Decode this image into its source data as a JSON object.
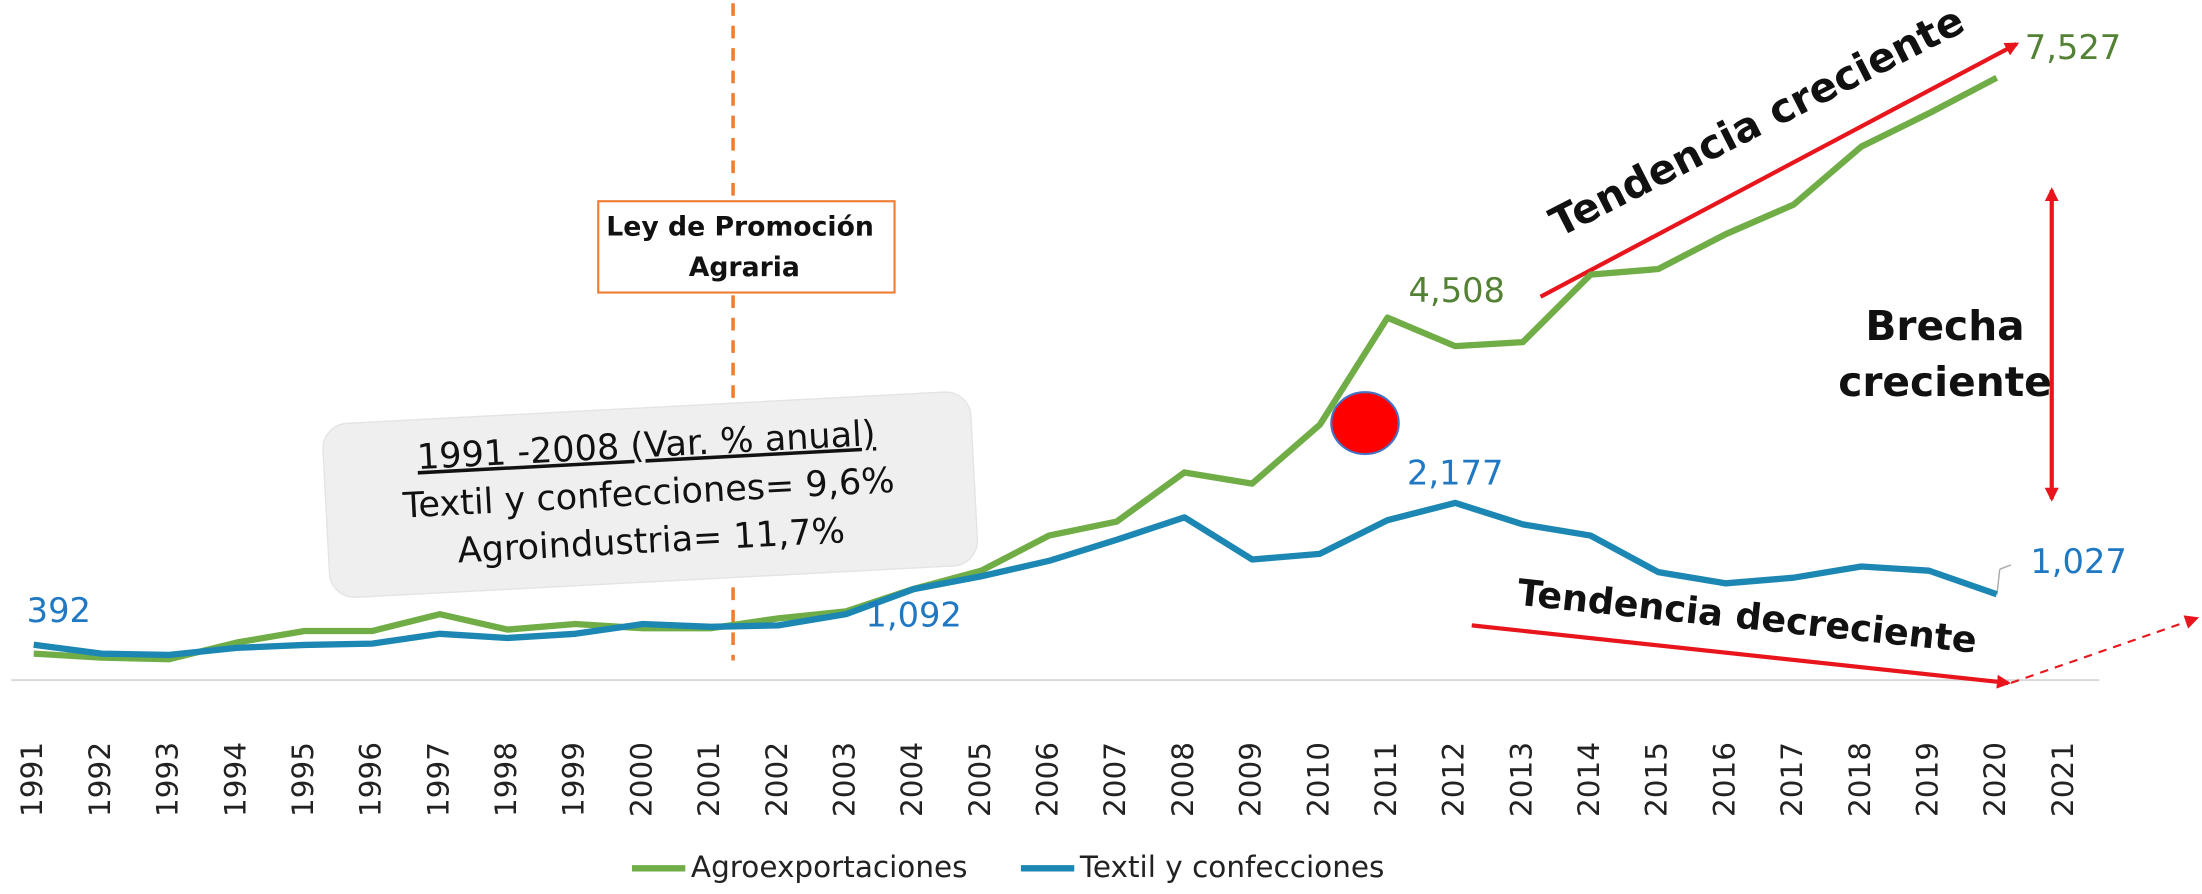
{
  "chart_data": {
    "type": "line",
    "categories": [
      "1991",
      "1992",
      "1993",
      "1994",
      "1995",
      "1996",
      "1997",
      "1998",
      "1999",
      "2000",
      "2001",
      "2002",
      "2003",
      "2004",
      "2005",
      "2006",
      "2007",
      "2008",
      "2009",
      "2010",
      "2011",
      "2012",
      "2013",
      "2014",
      "2015",
      "2016",
      "2017",
      "2018",
      "2019",
      "2020",
      "2021"
    ],
    "ylim": [
      0,
      8500
    ],
    "series": [
      {
        "name": "Agroexportaciones",
        "color": "#70ad47",
        "values": [
          280,
          230,
          210,
          420,
          565,
          565,
          777,
          583,
          653,
          600,
          600,
          724,
          812,
          1095,
          1324,
          1766,
          1942,
          2560,
          2419,
          3160,
          4508,
          4150,
          4200,
          5050,
          5120,
          5560,
          5930,
          6660,
          7080,
          7527,
          null
        ],
        "value_labels": [
          null,
          null,
          null,
          null,
          null,
          null,
          null,
          null,
          null,
          null,
          null,
          null,
          null,
          null,
          null,
          null,
          null,
          null,
          null,
          null,
          "4,508",
          null,
          null,
          null,
          null,
          null,
          null,
          null,
          null,
          "7,527",
          null
        ]
      },
      {
        "name": "Textil y confecciones",
        "color": "#1c87b3",
        "values": [
          392,
          280,
          265,
          353,
          390,
          406,
          530,
          477,
          530,
          653,
          618,
          636,
          777,
          1092,
          1254,
          1448,
          1713,
          1995,
          1465,
          1536,
          1960,
          2177,
          1907,
          1766,
          1306,
          1165,
          1236,
          1377,
          1324,
          1027,
          null
        ],
        "value_labels": [
          "392",
          null,
          null,
          null,
          null,
          null,
          null,
          null,
          null,
          null,
          null,
          null,
          null,
          "1,092",
          null,
          null,
          null,
          null,
          null,
          null,
          null,
          "2,177",
          null,
          null,
          null,
          null,
          null,
          null,
          null,
          "1,027",
          null
        ]
      }
    ],
    "annotations": {
      "law": [
        "Ley de Promoción",
        "Agraria"
      ],
      "stats": [
        "1991 -2008 (Var. % anual)",
        "Textil y confecciones= 9,6%",
        "Agroindustria= 11,7%"
      ],
      "rising": "Tendencia creciente",
      "gap": [
        "Brecha",
        "creciente"
      ],
      "falling": "Tendencia decreciente"
    }
  }
}
